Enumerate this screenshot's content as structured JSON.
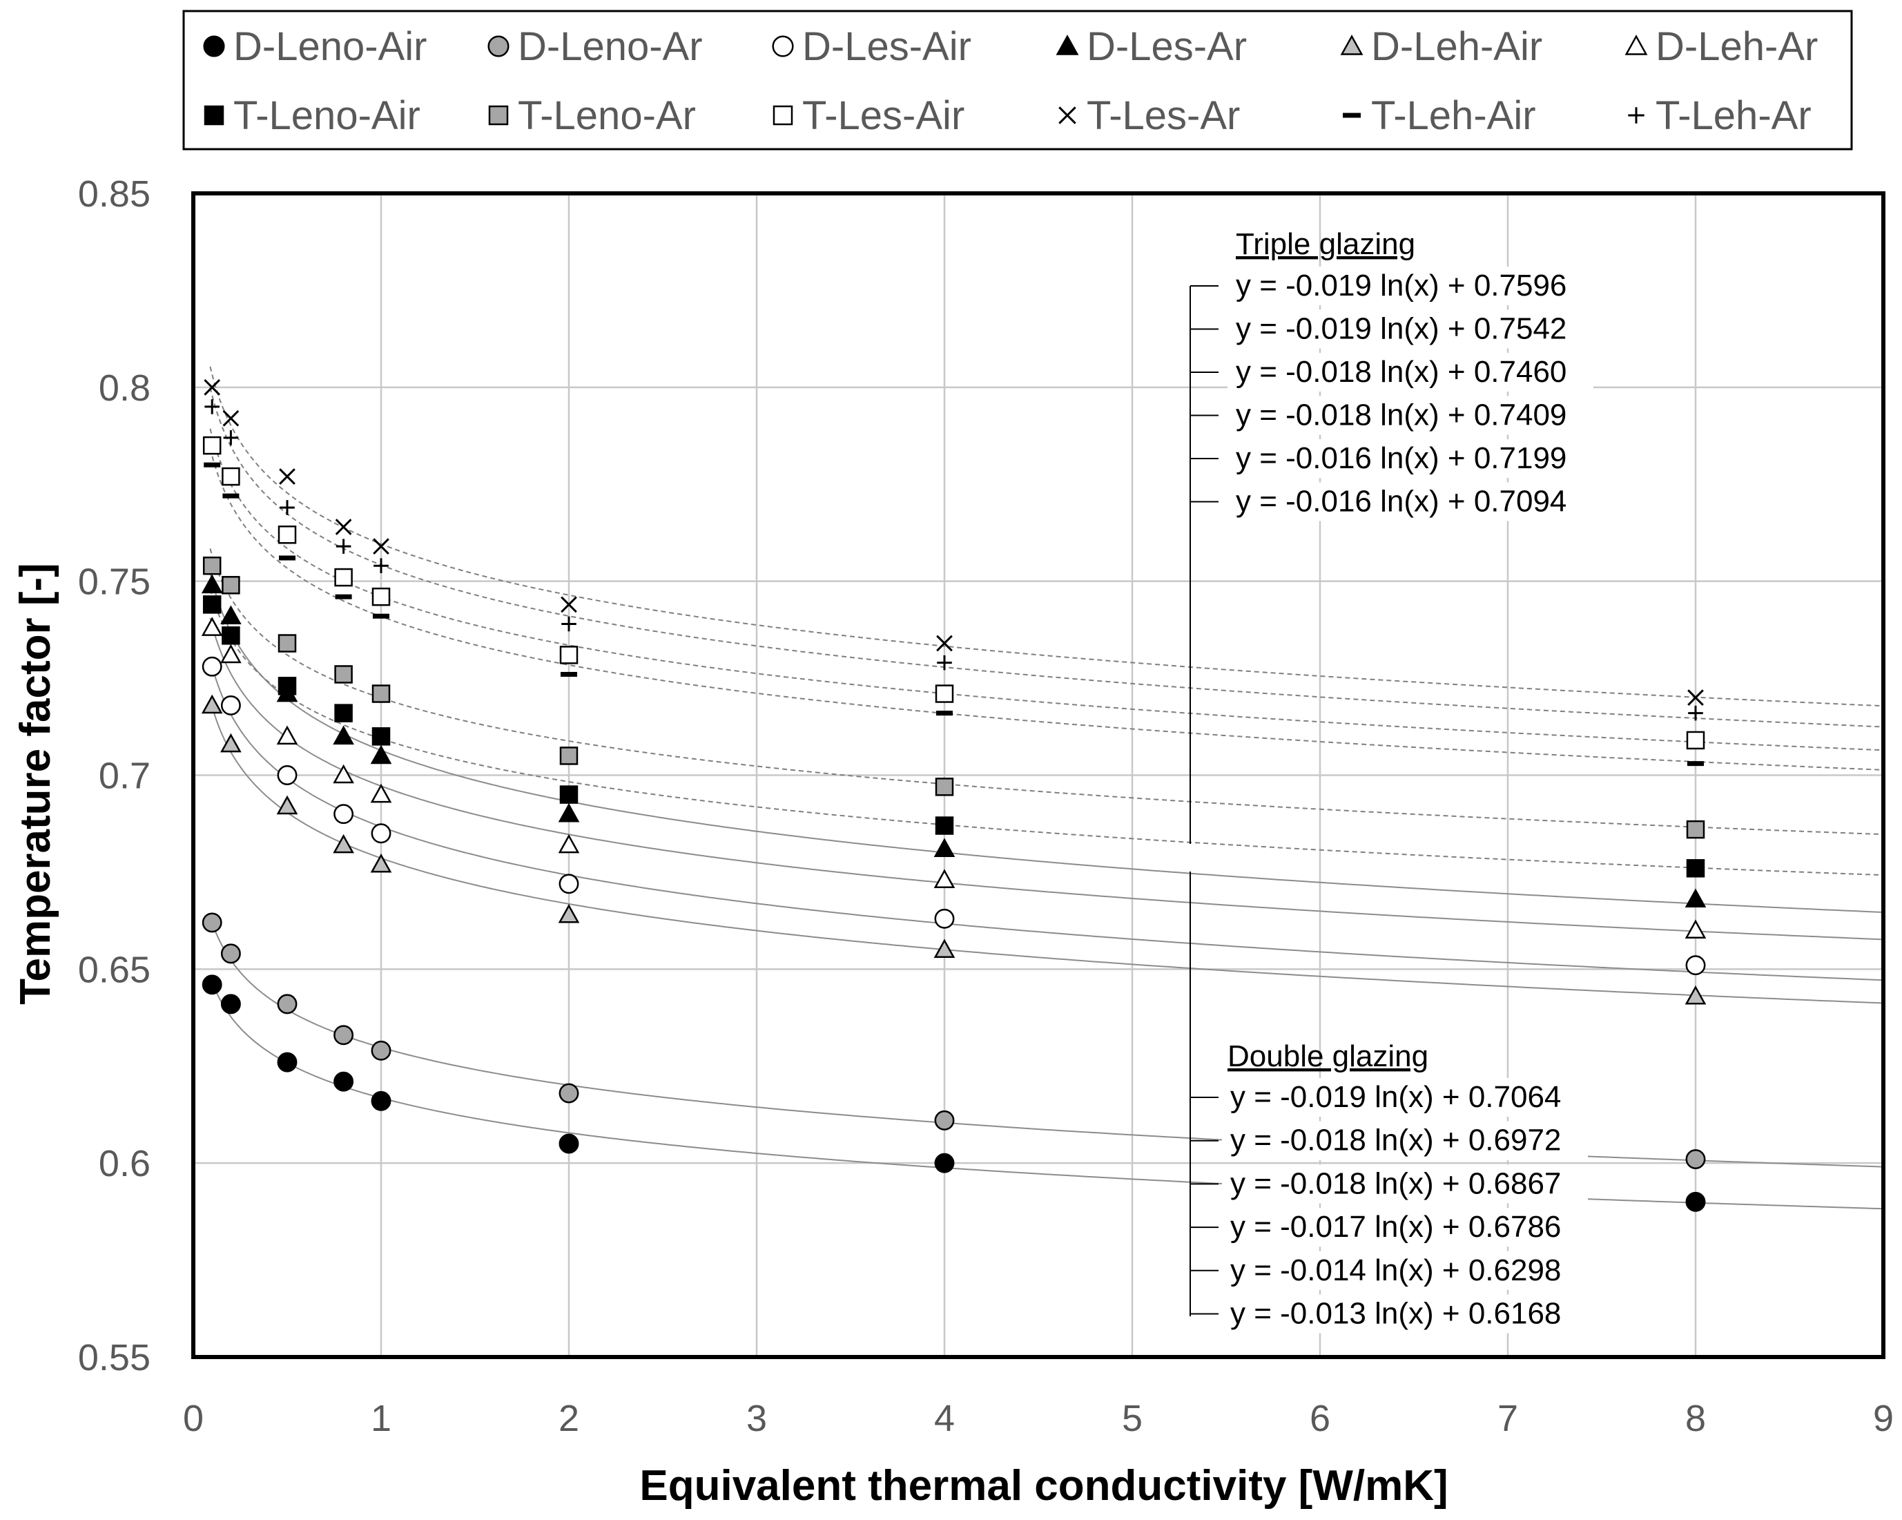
{
  "chart_data": {
    "type": "scatter",
    "title": "",
    "xlabel": "Equivalent thermal conductivity [W/mK]",
    "ylabel": "Temperature factor [-]",
    "xlim": [
      0,
      9
    ],
    "ylim": [
      0.55,
      0.85
    ],
    "x_ticks": [
      "0",
      "1",
      "2",
      "3",
      "4",
      "5",
      "6",
      "7",
      "8",
      "9"
    ],
    "y_ticks": [
      "0.55",
      "0.6",
      "0.65",
      "0.7",
      "0.75",
      "0.8",
      "0.85"
    ],
    "grid": true,
    "legend_position": "top",
    "x": [
      0.1,
      0.2,
      0.5,
      0.8,
      1,
      2,
      4,
      8
    ],
    "series": [
      {
        "name": "D-Leno-Air",
        "marker": "circle",
        "fill": "#000000",
        "values": [
          0.646,
          0.641,
          0.626,
          0.621,
          0.616,
          0.605,
          0.6,
          0.59
        ],
        "fit": {
          "a": -0.013,
          "b": 0.6168,
          "style": "solid"
        }
      },
      {
        "name": "D-Leno-Ar",
        "marker": "circle",
        "fill": "#a6a6a6",
        "values": [
          0.662,
          0.654,
          0.641,
          0.633,
          0.629,
          0.618,
          0.611,
          0.601
        ],
        "fit": {
          "a": -0.014,
          "b": 0.6298,
          "style": "solid"
        }
      },
      {
        "name": "D-Les-Air",
        "marker": "circle",
        "fill": "#ffffff",
        "values": [
          0.728,
          0.718,
          0.7,
          0.69,
          0.685,
          0.672,
          0.663,
          0.651
        ],
        "fit": {
          "a": -0.018,
          "b": 0.6867,
          "style": "solid"
        }
      },
      {
        "name": "D-Les-Ar",
        "marker": "triangle",
        "fill": "#000000",
        "values": [
          0.749,
          0.741,
          0.721,
          0.71,
          0.705,
          0.69,
          0.681,
          0.668
        ],
        "fit": {
          "a": -0.019,
          "b": 0.7064,
          "style": "solid"
        }
      },
      {
        "name": "D-Leh-Air",
        "marker": "triangle",
        "fill": "#bfbfbf",
        "values": [
          0.718,
          0.708,
          0.692,
          0.682,
          0.677,
          0.664,
          0.655,
          0.643
        ],
        "fit": {
          "a": -0.017,
          "b": 0.6786,
          "style": "solid"
        }
      },
      {
        "name": "D-Leh-Ar",
        "marker": "triangle",
        "fill": "#ffffff",
        "values": [
          0.738,
          0.731,
          0.71,
          0.7,
          0.695,
          0.682,
          0.673,
          0.66
        ],
        "fit": {
          "a": -0.018,
          "b": 0.6972,
          "style": "solid"
        }
      },
      {
        "name": "T-Leno-Air",
        "marker": "square",
        "fill": "#000000",
        "values": [
          0.744,
          0.736,
          0.723,
          0.716,
          0.71,
          0.695,
          0.687,
          0.676
        ],
        "fit": {
          "a": -0.016,
          "b": 0.7094,
          "style": "dashed"
        }
      },
      {
        "name": "T-Leno-Ar",
        "marker": "square",
        "fill": "#a6a6a6",
        "values": [
          0.754,
          0.749,
          0.734,
          0.726,
          0.721,
          0.705,
          0.697,
          0.686
        ],
        "fit": {
          "a": -0.016,
          "b": 0.7199,
          "style": "dashed"
        }
      },
      {
        "name": "T-Les-Air",
        "marker": "square",
        "fill": "#ffffff",
        "values": [
          0.785,
          0.777,
          0.762,
          0.751,
          0.746,
          0.731,
          0.721,
          0.709
        ],
        "fit": {
          "a": -0.018,
          "b": 0.746,
          "style": "dashed"
        }
      },
      {
        "name": "T-Les-Ar",
        "marker": "x",
        "fill": "#000000",
        "values": [
          0.8,
          0.792,
          0.777,
          0.764,
          0.759,
          0.744,
          0.734,
          0.72
        ],
        "fit": {
          "a": -0.019,
          "b": 0.7596,
          "style": "dashed"
        }
      },
      {
        "name": "T-Leh-Air",
        "marker": "dash",
        "fill": "#000000",
        "values": [
          0.78,
          0.772,
          0.756,
          0.746,
          0.741,
          0.726,
          0.716,
          0.703
        ],
        "fit": {
          "a": -0.018,
          "b": 0.7409,
          "style": "dashed"
        }
      },
      {
        "name": "T-Leh-Ar",
        "marker": "plus",
        "fill": "#000000",
        "values": [
          0.795,
          0.787,
          0.769,
          0.759,
          0.754,
          0.739,
          0.729,
          0.716
        ],
        "fit": {
          "a": -0.019,
          "b": 0.7542,
          "style": "dashed"
        }
      }
    ],
    "annotations": {
      "triple_title": "Triple glazing",
      "triple_equations": [
        "y = -0.019 ln(x) + 0.7596",
        "y = -0.019 ln(x) + 0.7542",
        "y = -0.018 ln(x) + 0.7460",
        "y = -0.018 ln(x) + 0.7409",
        "y = -0.016 ln(x) + 0.7199",
        "y = -0.016 ln(x) + 0.7094"
      ],
      "double_title": "Double glazing",
      "double_equations": [
        "y = -0.019 ln(x) + 0.7064",
        "y = -0.018 ln(x) + 0.6972",
        "y = -0.018 ln(x) + 0.6867",
        "y = -0.017 ln(x) + 0.6786",
        "y = -0.014 ln(x) + 0.6298",
        "y = -0.013 ln(x) + 0.6168"
      ]
    }
  }
}
